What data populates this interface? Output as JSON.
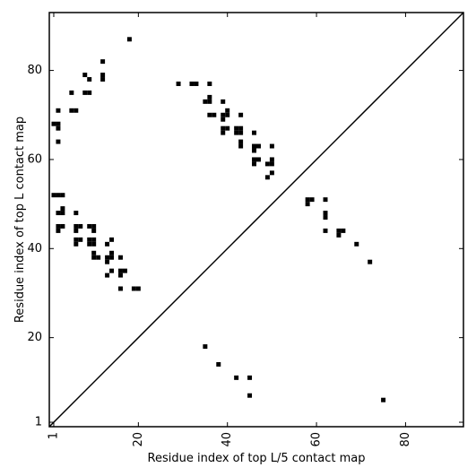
{
  "chart_data": {
    "type": "scatter",
    "title": "",
    "xlabel": "Residue index of top L/5 contact map",
    "ylabel": "Residue index of top L contact map",
    "xlim": [
      0,
      93
    ],
    "ylim": [
      0,
      93
    ],
    "x_ticks": [
      {
        "value": 1,
        "label": "1"
      },
      {
        "value": 20,
        "label": "20"
      },
      {
        "value": 40,
        "label": "40"
      },
      {
        "value": 60,
        "label": "60"
      },
      {
        "value": 80,
        "label": "80"
      }
    ],
    "y_ticks": [
      {
        "value": 1,
        "label": "1"
      },
      {
        "value": 20,
        "label": "20"
      },
      {
        "value": 40,
        "label": "40"
      },
      {
        "value": 60,
        "label": "60"
      },
      {
        "value": 80,
        "label": "80"
      }
    ],
    "grid": false,
    "diagonal": true,
    "marker_color": "#000000",
    "series": [
      {
        "points": [
          [
            1,
            52
          ],
          [
            1,
            68
          ],
          [
            2,
            71
          ],
          [
            2,
            68
          ],
          [
            2,
            67
          ],
          [
            2,
            64
          ],
          [
            2,
            52
          ],
          [
            2,
            48
          ],
          [
            2,
            45
          ],
          [
            2,
            44
          ],
          [
            3,
            52
          ],
          [
            3,
            49
          ],
          [
            3,
            48
          ],
          [
            3,
            45
          ],
          [
            5,
            75
          ],
          [
            5,
            71
          ],
          [
            6,
            71
          ],
          [
            6,
            48
          ],
          [
            6,
            45
          ],
          [
            6,
            44
          ],
          [
            6,
            42
          ],
          [
            6,
            41
          ],
          [
            7,
            45
          ],
          [
            7,
            42
          ],
          [
            8,
            79
          ],
          [
            8,
            75
          ],
          [
            9,
            78
          ],
          [
            9,
            75
          ],
          [
            9,
            45
          ],
          [
            9,
            42
          ],
          [
            9,
            41
          ],
          [
            10,
            45
          ],
          [
            10,
            44
          ],
          [
            10,
            42
          ],
          [
            10,
            41
          ],
          [
            10,
            39
          ],
          [
            10,
            38
          ],
          [
            11,
            38
          ],
          [
            12,
            82
          ],
          [
            12,
            79
          ],
          [
            12,
            78
          ],
          [
            13,
            41
          ],
          [
            13,
            38
          ],
          [
            13,
            37
          ],
          [
            13,
            34
          ],
          [
            14,
            42
          ],
          [
            14,
            39
          ],
          [
            14,
            38
          ],
          [
            14,
            35
          ],
          [
            16,
            35
          ],
          [
            16,
            34
          ],
          [
            16,
            31
          ],
          [
            16,
            38
          ],
          [
            17,
            35
          ],
          [
            18,
            87
          ],
          [
            19,
            31
          ],
          [
            20,
            31
          ],
          [
            29,
            77
          ],
          [
            32,
            77
          ],
          [
            33,
            77
          ],
          [
            35,
            73
          ],
          [
            36,
            77
          ],
          [
            36,
            74
          ],
          [
            36,
            73
          ],
          [
            36,
            70
          ],
          [
            37,
            70
          ],
          [
            39,
            73
          ],
          [
            39,
            70
          ],
          [
            39,
            69
          ],
          [
            39,
            67
          ],
          [
            39,
            66
          ],
          [
            40,
            71
          ],
          [
            40,
            70
          ],
          [
            40,
            67
          ],
          [
            42,
            67
          ],
          [
            42,
            66
          ],
          [
            43,
            70
          ],
          [
            43,
            67
          ],
          [
            43,
            66
          ],
          [
            43,
            64
          ],
          [
            43,
            63
          ],
          [
            46,
            66
          ],
          [
            46,
            63
          ],
          [
            46,
            62
          ],
          [
            46,
            60
          ],
          [
            46,
            59
          ],
          [
            47,
            63
          ],
          [
            47,
            60
          ],
          [
            49,
            59
          ],
          [
            49,
            56
          ],
          [
            50,
            63
          ],
          [
            50,
            60
          ],
          [
            50,
            59
          ],
          [
            50,
            57
          ],
          [
            58,
            51
          ],
          [
            58,
            50
          ],
          [
            59,
            51
          ],
          [
            62,
            51
          ],
          [
            62,
            48
          ],
          [
            62,
            47
          ],
          [
            62,
            44
          ],
          [
            65,
            44
          ],
          [
            65,
            43
          ],
          [
            66,
            44
          ],
          [
            69,
            41
          ],
          [
            72,
            37
          ],
          [
            35,
            18
          ],
          [
            38,
            14
          ],
          [
            42,
            11
          ],
          [
            45,
            11
          ],
          [
            45,
            7
          ],
          [
            75,
            6
          ]
        ]
      }
    ]
  }
}
